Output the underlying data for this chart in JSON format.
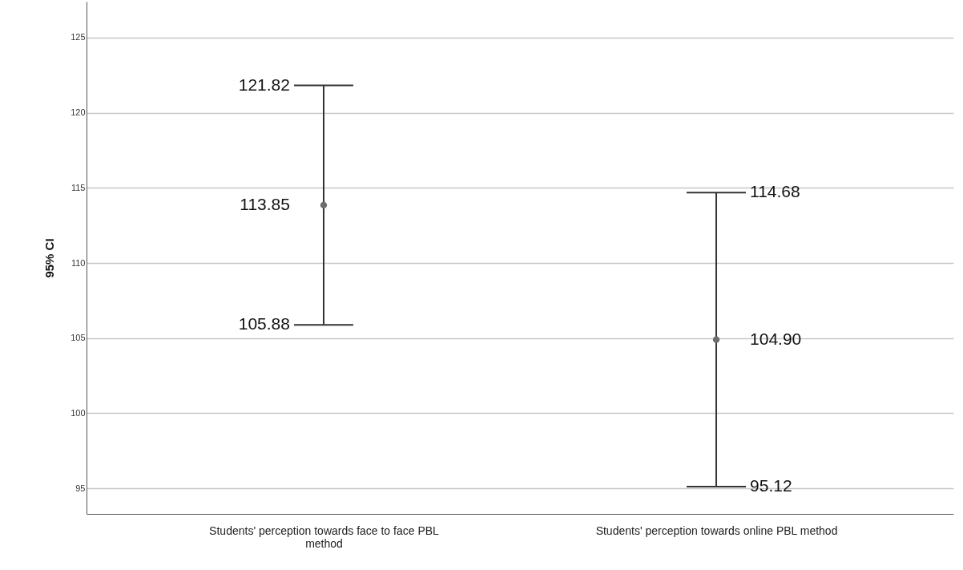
{
  "chart_data": {
    "type": "scatter",
    "ylabel": "95% CI",
    "categories": [
      "Students' perception towards face to face PBL method",
      "Students' perception towards online PBL method"
    ],
    "values": [
      113.85,
      104.9
    ],
    "errors": [
      [
        105.88,
        121.82
      ],
      [
        95.12,
        114.68
      ]
    ],
    "value_labels": [
      "113.85",
      "104.90"
    ],
    "annotations": [
      {
        "text": "121.82",
        "x": "Students' perception towards face to face PBL method",
        "y": 121.82
      },
      {
        "text": "105.88",
        "x": "Students' perception towards face to face PBL method",
        "y": 105.88
      },
      {
        "text": "114.68",
        "x": "Students' perception towards online PBL method",
        "y": 114.68
      },
      {
        "text": "95.12",
        "x": "Students' perception towards online PBL method",
        "y": 95.12
      }
    ],
    "color": "#6e6e6e",
    "marker": "circle",
    "ylim": [
      93.3,
      127.4
    ],
    "yticks": [
      95,
      100,
      105,
      110,
      115,
      120,
      125
    ],
    "grid": "y"
  }
}
